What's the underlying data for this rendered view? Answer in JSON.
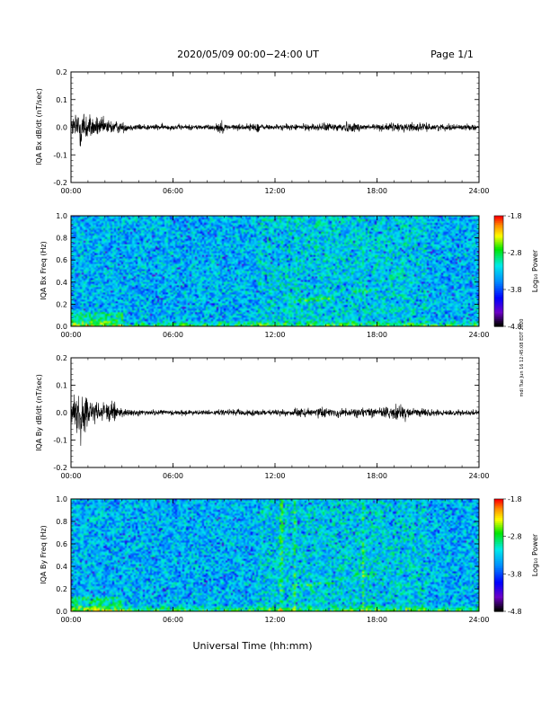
{
  "header": {
    "date_range": "2020/05/09  00:00−24:00 UT",
    "page": "Page 1/1"
  },
  "xlabel": "Universal Time (hh:mm)",
  "side_stamp": "mdi Tue Jun 16 12:45:08 EDT 2020",
  "colorbar": {
    "label": "Log₁₀ Power",
    "ticks": [
      "-1.8",
      "-2.8",
      "-3.8",
      "-4.8"
    ],
    "colors": [
      "#ff0000",
      "#ff8800",
      "#ffff00",
      "#00ff00",
      "#00ffff",
      "#0088ff",
      "#0000ff",
      "#8000ff",
      "#000000"
    ]
  },
  "chart_data": [
    {
      "type": "line",
      "ylabel": "IQA Bx dB/dt (nT/sec)",
      "xlim": [
        0,
        24
      ],
      "ylim": [
        -0.2,
        0.2
      ],
      "x_ticks": [
        "00:00",
        "06:00",
        "12:00",
        "18:00",
        "24:00"
      ],
      "y_ticks": [
        "0.2",
        "0.1",
        "0.0",
        "-0.1",
        "-0.2"
      ],
      "envelope": [
        [
          0,
          0.03
        ],
        [
          0.3,
          0.06
        ],
        [
          0.5,
          0.09
        ],
        [
          0.8,
          0.06
        ],
        [
          1.2,
          0.04
        ],
        [
          2.0,
          0.03
        ],
        [
          2.5,
          0.025
        ],
        [
          3.5,
          0.012
        ],
        [
          6,
          0.01
        ],
        [
          8.5,
          0.01
        ],
        [
          8.8,
          0.03
        ],
        [
          9.1,
          0.01
        ],
        [
          10.5,
          0.012
        ],
        [
          11,
          0.02
        ],
        [
          11.3,
          0.01
        ],
        [
          12,
          0.01
        ],
        [
          14,
          0.012
        ],
        [
          15,
          0.015
        ],
        [
          16,
          0.02
        ],
        [
          17,
          0.015
        ],
        [
          18,
          0.012
        ],
        [
          19,
          0.015
        ],
        [
          20,
          0.018
        ],
        [
          21,
          0.012
        ],
        [
          24,
          0.01
        ]
      ]
    },
    {
      "type": "heatmap",
      "ylabel": "IQA Bx Freq (Hz)",
      "xlim": [
        0,
        24
      ],
      "ylim": [
        0,
        1
      ],
      "x_ticks": [
        "00:00",
        "06:00",
        "12:00",
        "18:00",
        "24:00"
      ],
      "y_ticks": [
        "1.0",
        "0.8",
        "0.6",
        "0.4",
        "0.2",
        "0.0"
      ],
      "log_power_range": [
        -4.8,
        -1.8
      ]
    },
    {
      "type": "line",
      "ylabel": "IQA By dB/dt (nT/sec)",
      "xlim": [
        0,
        24
      ],
      "ylim": [
        -0.2,
        0.2
      ],
      "x_ticks": [
        "00:00",
        "06:00",
        "12:00",
        "18:00",
        "24:00"
      ],
      "y_ticks": [
        "0.2",
        "0.1",
        "0.0",
        "-0.1",
        "-0.2"
      ],
      "envelope": [
        [
          0,
          0.04
        ],
        [
          0.3,
          0.07
        ],
        [
          0.5,
          0.09
        ],
        [
          0.8,
          0.07
        ],
        [
          1.2,
          0.04
        ],
        [
          2.0,
          0.04
        ],
        [
          2.4,
          0.05
        ],
        [
          2.7,
          0.02
        ],
        [
          3.5,
          0.012
        ],
        [
          6,
          0.01
        ],
        [
          9,
          0.01
        ],
        [
          11,
          0.012
        ],
        [
          12,
          0.01
        ],
        [
          13,
          0.012
        ],
        [
          14.5,
          0.02
        ],
        [
          15.5,
          0.015
        ],
        [
          16.5,
          0.02
        ],
        [
          17.5,
          0.015
        ],
        [
          18.5,
          0.02
        ],
        [
          19.5,
          0.03
        ],
        [
          20,
          0.02
        ],
        [
          21,
          0.012
        ],
        [
          24,
          0.01
        ]
      ]
    },
    {
      "type": "heatmap",
      "ylabel": "IQA By Freq (Hz)",
      "xlim": [
        0,
        24
      ],
      "ylim": [
        0,
        1
      ],
      "x_ticks": [
        "00:00",
        "06:00",
        "12:00",
        "18:00",
        "24:00"
      ],
      "y_ticks": [
        "1.0",
        "0.8",
        "0.6",
        "0.4",
        "0.2",
        "0.0"
      ],
      "log_power_range": [
        -4.8,
        -1.8
      ]
    }
  ]
}
